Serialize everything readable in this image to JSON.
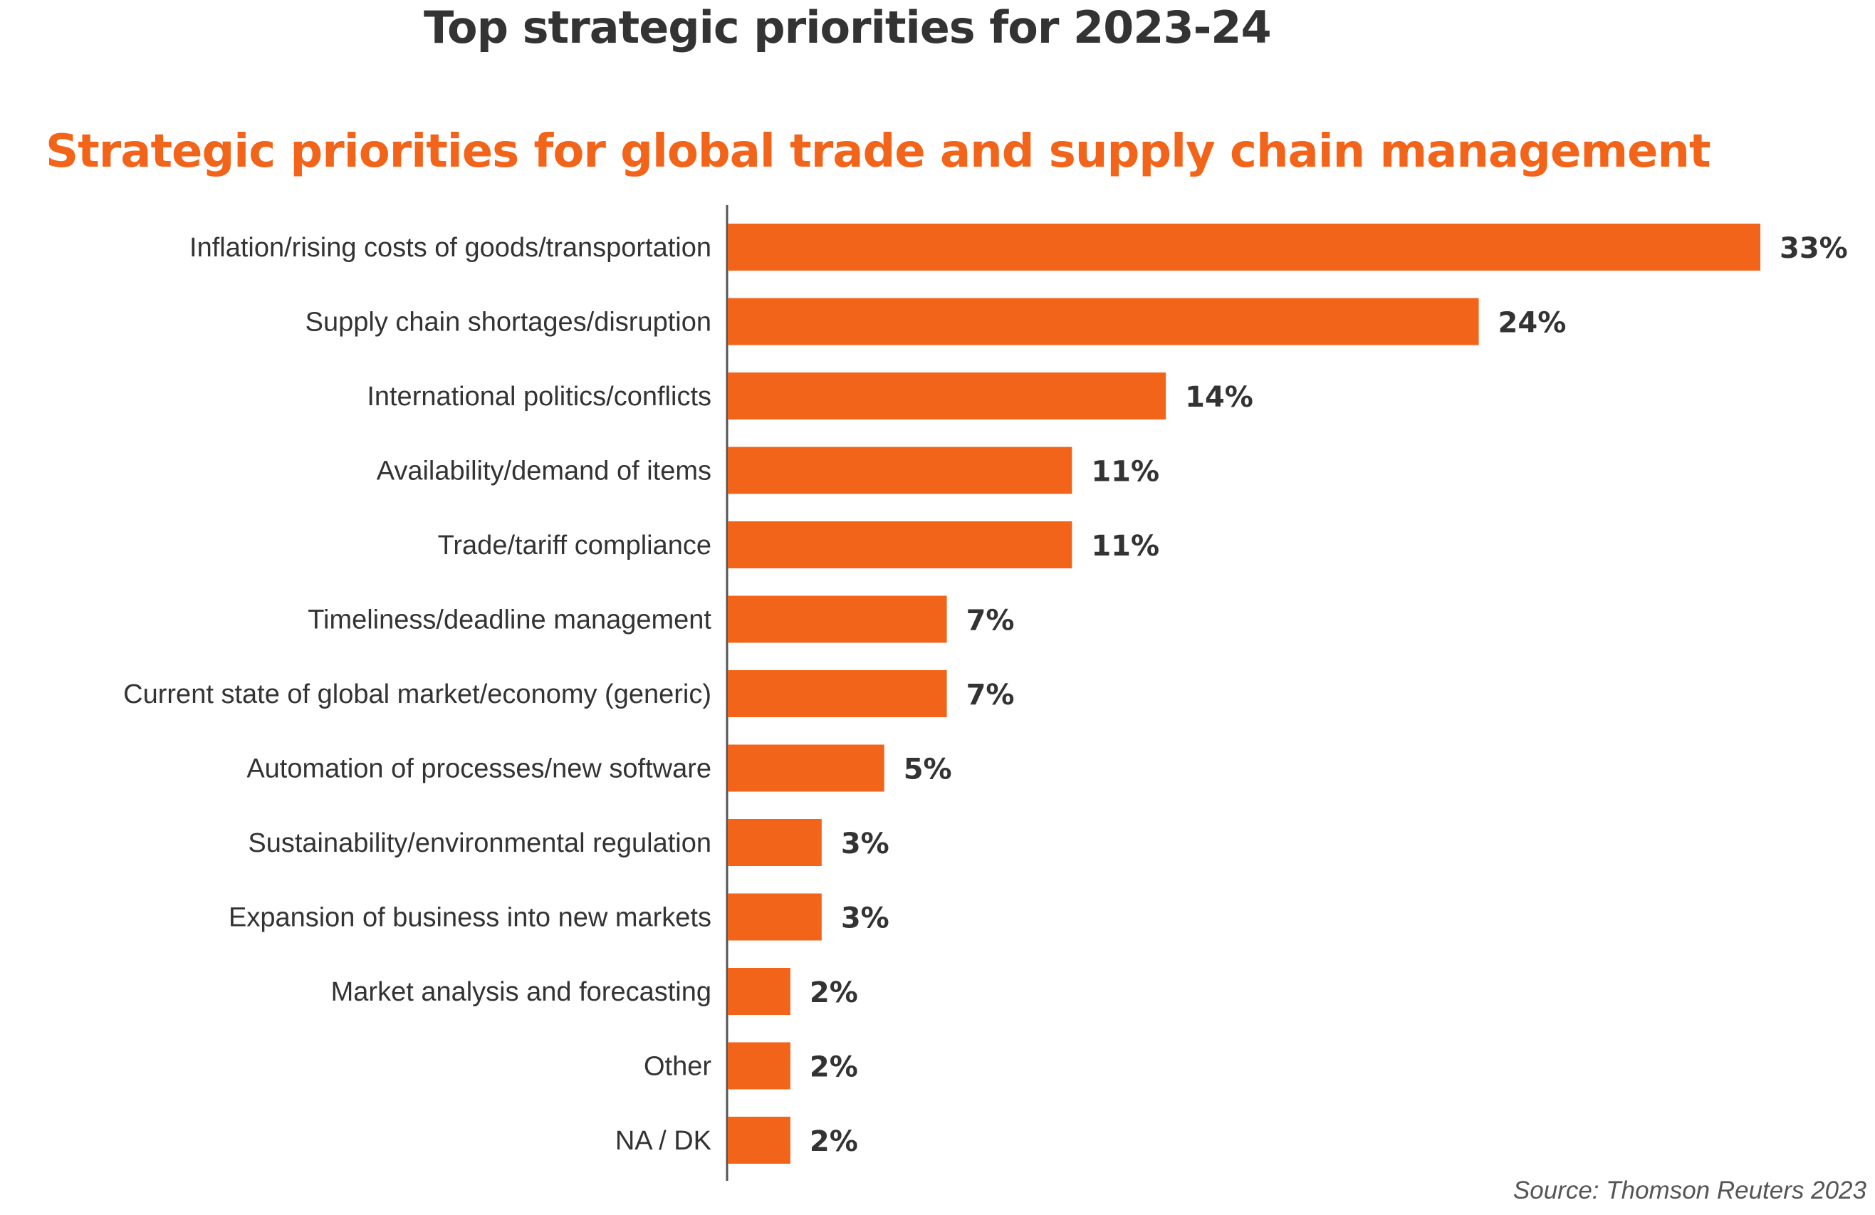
{
  "title": "Top strategic priorities for 2023-24",
  "subtitle": "Strategic priorities for global trade and supply chain management",
  "source": "Source: Thomson Reuters 2023",
  "colors": {
    "bar": "#f26419",
    "subtitle": "#f26419",
    "title": "#333333",
    "text": "#333333"
  },
  "chart_data": {
    "type": "bar",
    "orientation": "horizontal",
    "categories": [
      "Inflation/rising costs of goods/transportation",
      "Supply chain shortages/disruption",
      "International politics/conflicts",
      "Availability/demand of items",
      "Trade/tariff compliance",
      "Timeliness/deadline management",
      "Current state of global market/economy (generic)",
      "Automation of processes/new software",
      "Sustainability/environmental regulation",
      "Expansion of business into new markets",
      "Market analysis and forecasting",
      "Other",
      "NA / DK"
    ],
    "values": [
      33,
      24,
      14,
      11,
      11,
      7,
      7,
      5,
      3,
      3,
      2,
      2,
      2
    ],
    "value_labels": [
      "33%",
      "24%",
      "14%",
      "11%",
      "11%",
      "7%",
      "7%",
      "5%",
      "3%",
      "3%",
      "2%",
      "2%",
      "2%"
    ],
    "xlim": [
      0,
      33
    ],
    "grid": false,
    "legend": "none"
  }
}
